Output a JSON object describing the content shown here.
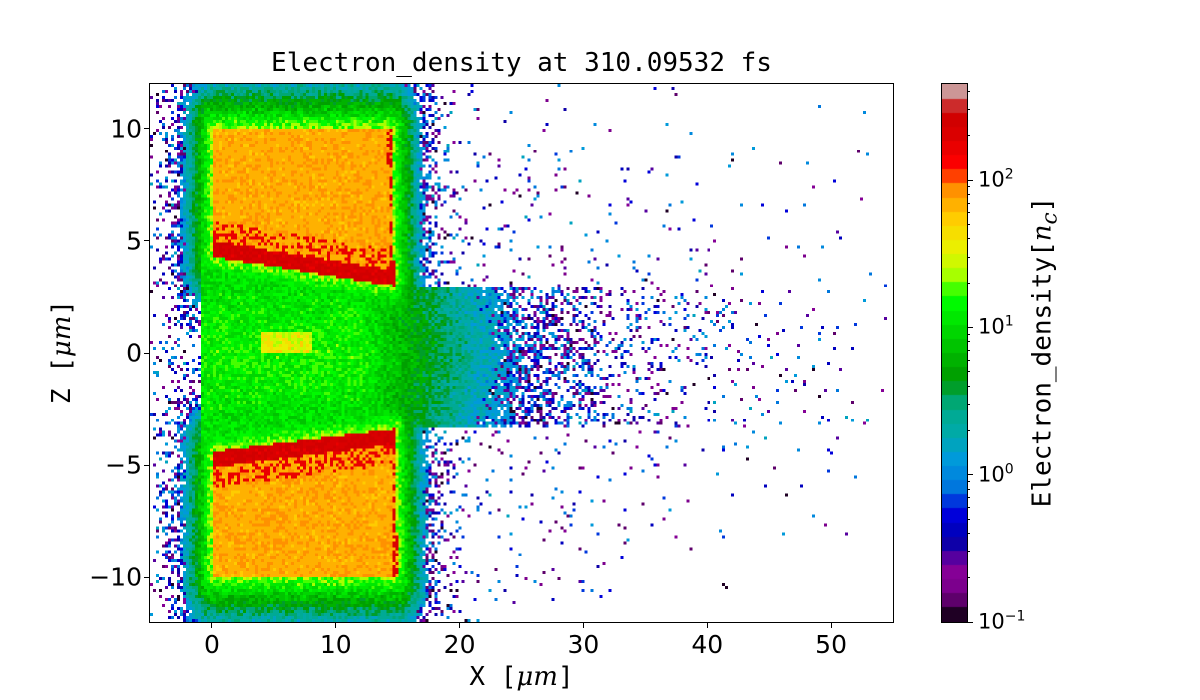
{
  "chart_data": {
    "type": "heatmap",
    "title": "Electron_density at 310.09532 fs",
    "xlabel": "X [",
    "xlabel_unit": "μm",
    "xlabel_close": "]",
    "ylabel": "Z [",
    "ylabel_unit": "μm",
    "ylabel_close": "]",
    "xlim": [
      -5,
      55
    ],
    "ylim": [
      -12,
      12
    ],
    "xticks": [
      0,
      10,
      20,
      30,
      40,
      50
    ],
    "xtick_labels": [
      "0",
      "10",
      "20",
      "30",
      "40",
      "50"
    ],
    "yticks": [
      -10,
      -5,
      0,
      5,
      10
    ],
    "ytick_labels": [
      "−10",
      "−5",
      "0",
      "5",
      "10"
    ],
    "colorbar": {
      "label": "Electron_density[",
      "unit": "n",
      "unit_sub": "c",
      "unit_close": "]",
      "scale": "log",
      "range": [
        0.1,
        450
      ],
      "colormap": "nipy_spectral",
      "levels": 38,
      "ticks": [
        0.1,
        1,
        10,
        100
      ],
      "tick_labels": [
        {
          "base": "10",
          "exp": "−1"
        },
        {
          "base": "10",
          "exp": "0"
        },
        {
          "base": "10",
          "exp": "1"
        },
        {
          "base": "10",
          "exp": "2"
        }
      ]
    },
    "grid": false
  }
}
